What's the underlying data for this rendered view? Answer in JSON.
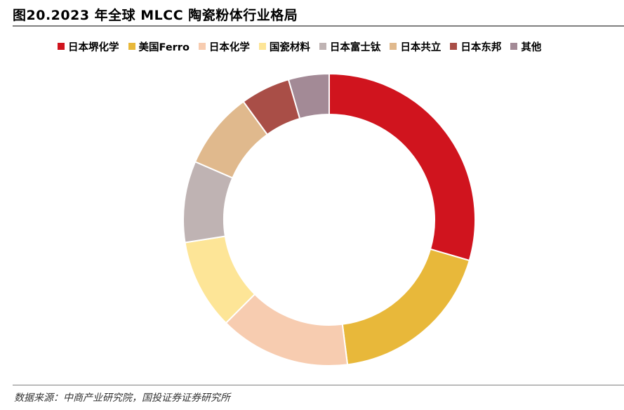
{
  "header": {
    "title": "图20.2023 年全球 MLCC 陶瓷粉体行业格局"
  },
  "chart_data": {
    "type": "pie",
    "variant": "donut",
    "title": "图20.2023 年全球 MLCC 陶瓷粉体行业格局",
    "legend_position": "top",
    "start_angle": "12 o'clock",
    "direction": "clockwise",
    "slices": [
      {
        "label": "日本堺化学",
        "value": 29.5,
        "color": "#d0141e"
      },
      {
        "label": "美国Ferro",
        "value": 18.5,
        "color": "#e8b83a"
      },
      {
        "label": "日本化学",
        "value": 14.5,
        "color": "#f7ccb0"
      },
      {
        "label": "国瓷材料",
        "value": 10.0,
        "color": "#fde597"
      },
      {
        "label": "日本富士钛",
        "value": 9.0,
        "color": "#bfb3b3"
      },
      {
        "label": "日本共立",
        "value": 8.5,
        "color": "#e0b98d"
      },
      {
        "label": "日本东邦",
        "value": 5.5,
        "color": "#a94e47"
      },
      {
        "label": "其他",
        "value": 4.5,
        "color": "#a38a96"
      }
    ]
  },
  "footer": {
    "source": "数据来源：中商产业研究院，国投证券证券研究所"
  }
}
